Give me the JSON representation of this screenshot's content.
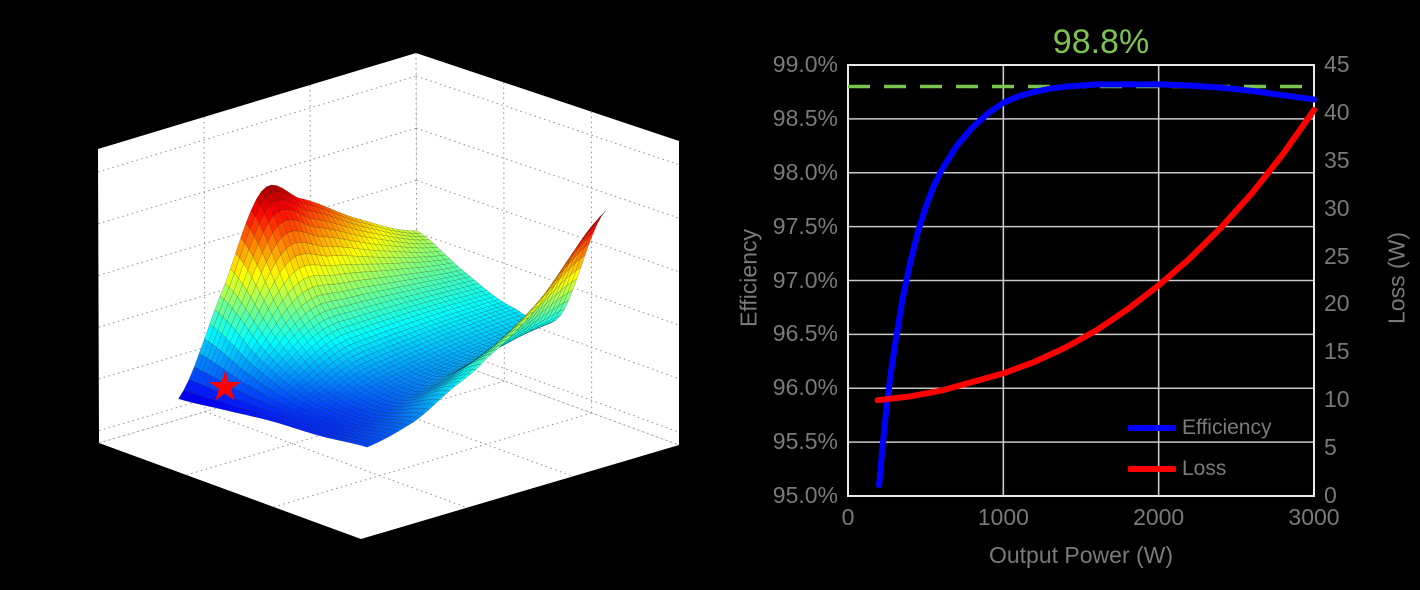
{
  "figure": {
    "background": "#000000",
    "wall_color": "#ffffff",
    "grid_dot_color": "#8f8f8f"
  },
  "chart_data": [
    {
      "type": "surface3d",
      "title": "",
      "description": "Loss optimization surface over normalized design space, jet colormap, minimum marked with red star on white-walled 3D axes with dotted grid",
      "colormap": "jet",
      "grid": "dotted",
      "z_grid": {
        "u": [
          0,
          0.25,
          0.5,
          0.65,
          0.8,
          1
        ],
        "v": [
          0,
          0.25,
          0.5,
          0.75,
          1
        ],
        "z": [
          [
            0.4,
            0.32,
            0.26,
            0.28,
            0.7
          ],
          [
            0.5,
            0.34,
            0.25,
            0.24,
            0.47
          ],
          [
            0.63,
            0.36,
            0.23,
            0.2,
            0.32
          ],
          [
            0.69,
            0.36,
            0.21,
            0.17,
            0.25
          ],
          [
            0.42,
            0.26,
            0.16,
            0.14,
            0.18
          ],
          [
            0.07,
            0.09,
            0.11,
            0.12,
            0.14
          ]
        ]
      },
      "z_color_max": 0.72,
      "optimum_marker": {
        "shape": "star",
        "color": "#ff0000",
        "uv": [
          0.9,
          0.12
        ]
      }
    },
    {
      "type": "line",
      "title": "",
      "xlabel": "Output Power (W)",
      "ylabel_left": "Efficiency",
      "ylabel_right": "Loss (W)",
      "x_range": [
        0,
        3000
      ],
      "y_left_range_pct": [
        95.0,
        99.0
      ],
      "y_right_range_w": [
        0,
        45
      ],
      "x_ticks": [
        "0",
        "1000",
        "2000",
        "3000"
      ],
      "x_tick_values": [
        0,
        1000,
        2000,
        3000
      ],
      "y_ticks_left": [
        "99.0%",
        "98.5%",
        "98.0%",
        "97.5%",
        "97.0%",
        "96.5%",
        "96.0%",
        "95.5%",
        "95.0%"
      ],
      "y_tick_left_values": [
        99.0,
        98.5,
        98.0,
        97.5,
        97.0,
        96.5,
        96.0,
        95.5,
        95.0
      ],
      "y_ticks_right": [
        "45",
        "40",
        "35",
        "30",
        "25",
        "20",
        "15",
        "10",
        "5",
        "0"
      ],
      "y_tick_right_values": [
        45,
        40,
        35,
        30,
        25,
        20,
        15,
        10,
        5,
        0
      ],
      "annotation": {
        "label": "98.8%",
        "value_pct": 98.8,
        "style": "dashed",
        "color": "#7cc352"
      },
      "grid": true,
      "grid_color": "#c9c9c9",
      "box_color": "#e9e9e9",
      "text_color": "#7a7a7a",
      "legend_position": "lower right inside",
      "series": [
        {
          "name": "Efficiency",
          "color": "#0000ff",
          "axis": "left",
          "points": [
            [
              200,
              95.1
            ],
            [
              225,
              95.5
            ],
            [
              250,
              95.85
            ],
            [
              275,
              96.13
            ],
            [
              300,
              96.38
            ],
            [
              350,
              96.82
            ],
            [
              400,
              97.16
            ],
            [
              450,
              97.45
            ],
            [
              500,
              97.68
            ],
            [
              550,
              97.87
            ],
            [
              600,
              98.02
            ],
            [
              700,
              98.25
            ],
            [
              800,
              98.42
            ],
            [
              900,
              98.55
            ],
            [
              1000,
              98.65
            ],
            [
              1100,
              98.71
            ],
            [
              1200,
              98.75
            ],
            [
              1300,
              98.78
            ],
            [
              1400,
              98.8
            ],
            [
              1500,
              98.81
            ],
            [
              1600,
              98.82
            ],
            [
              1800,
              98.82
            ],
            [
              2000,
              98.82
            ],
            [
              2200,
              98.81
            ],
            [
              2400,
              98.79
            ],
            [
              2600,
              98.76
            ],
            [
              2800,
              98.72
            ],
            [
              3000,
              98.68
            ]
          ]
        },
        {
          "name": "Loss",
          "color": "#ff0000",
          "axis": "right",
          "points": [
            [
              190,
              10.0
            ],
            [
              400,
              10.4
            ],
            [
              600,
              11.0
            ],
            [
              800,
              11.9
            ],
            [
              1000,
              12.8
            ],
            [
              1200,
              14.0
            ],
            [
              1400,
              15.5
            ],
            [
              1600,
              17.3
            ],
            [
              1800,
              19.5
            ],
            [
              2000,
              22.0
            ],
            [
              2200,
              24.8
            ],
            [
              2400,
              28.0
            ],
            [
              2600,
              31.6
            ],
            [
              2800,
              35.7
            ],
            [
              3000,
              40.3
            ]
          ]
        }
      ]
    }
  ]
}
